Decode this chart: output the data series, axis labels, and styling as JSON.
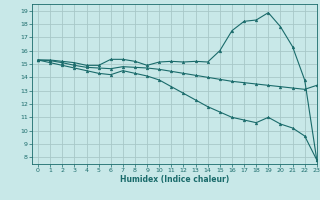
{
  "xlabel": "Humidex (Indice chaleur)",
  "xlim": [
    -0.5,
    23
  ],
  "ylim": [
    7.5,
    19.5
  ],
  "xticks": [
    0,
    1,
    2,
    3,
    4,
    5,
    6,
    7,
    8,
    9,
    10,
    11,
    12,
    13,
    14,
    15,
    16,
    17,
    18,
    19,
    20,
    21,
    22,
    23
  ],
  "yticks": [
    8,
    9,
    10,
    11,
    12,
    13,
    14,
    15,
    16,
    17,
    18,
    19
  ],
  "bg_color": "#c8e8e8",
  "grid_color": "#a8c8c8",
  "line_color": "#1a6b6b",
  "series": [
    {
      "x": [
        0,
        1,
        2,
        3,
        4,
        5,
        6,
        7,
        8,
        9,
        10,
        11,
        12,
        13,
        14,
        15,
        16,
        17,
        18,
        19,
        20,
        21,
        22,
        23
      ],
      "y": [
        15.3,
        15.3,
        15.2,
        15.1,
        14.9,
        14.9,
        15.35,
        15.35,
        15.2,
        14.9,
        15.15,
        15.2,
        15.15,
        15.2,
        15.15,
        16.0,
        17.5,
        18.2,
        18.3,
        18.85,
        17.8,
        16.3,
        13.8,
        7.8
      ]
    },
    {
      "x": [
        0,
        1,
        2,
        3,
        4,
        5,
        6,
        7,
        8,
        9,
        10,
        11,
        12,
        13,
        14,
        15,
        16,
        17,
        18,
        19,
        20,
        21,
        22,
        23
      ],
      "y": [
        15.3,
        15.25,
        15.1,
        14.9,
        14.75,
        14.7,
        14.65,
        14.8,
        14.75,
        14.7,
        14.6,
        14.45,
        14.3,
        14.15,
        14.0,
        13.85,
        13.7,
        13.6,
        13.5,
        13.4,
        13.3,
        13.2,
        13.1,
        13.4
      ]
    },
    {
      "x": [
        0,
        1,
        2,
        3,
        4,
        5,
        6,
        7,
        8,
        9,
        10,
        11,
        12,
        13,
        14,
        15,
        16,
        17,
        18,
        19,
        20,
        21,
        22,
        23
      ],
      "y": [
        15.3,
        15.1,
        14.9,
        14.7,
        14.5,
        14.3,
        14.2,
        14.5,
        14.3,
        14.1,
        13.8,
        13.3,
        12.8,
        12.3,
        11.8,
        11.4,
        11.0,
        10.8,
        10.6,
        11.0,
        10.5,
        10.2,
        9.6,
        7.8
      ]
    }
  ]
}
